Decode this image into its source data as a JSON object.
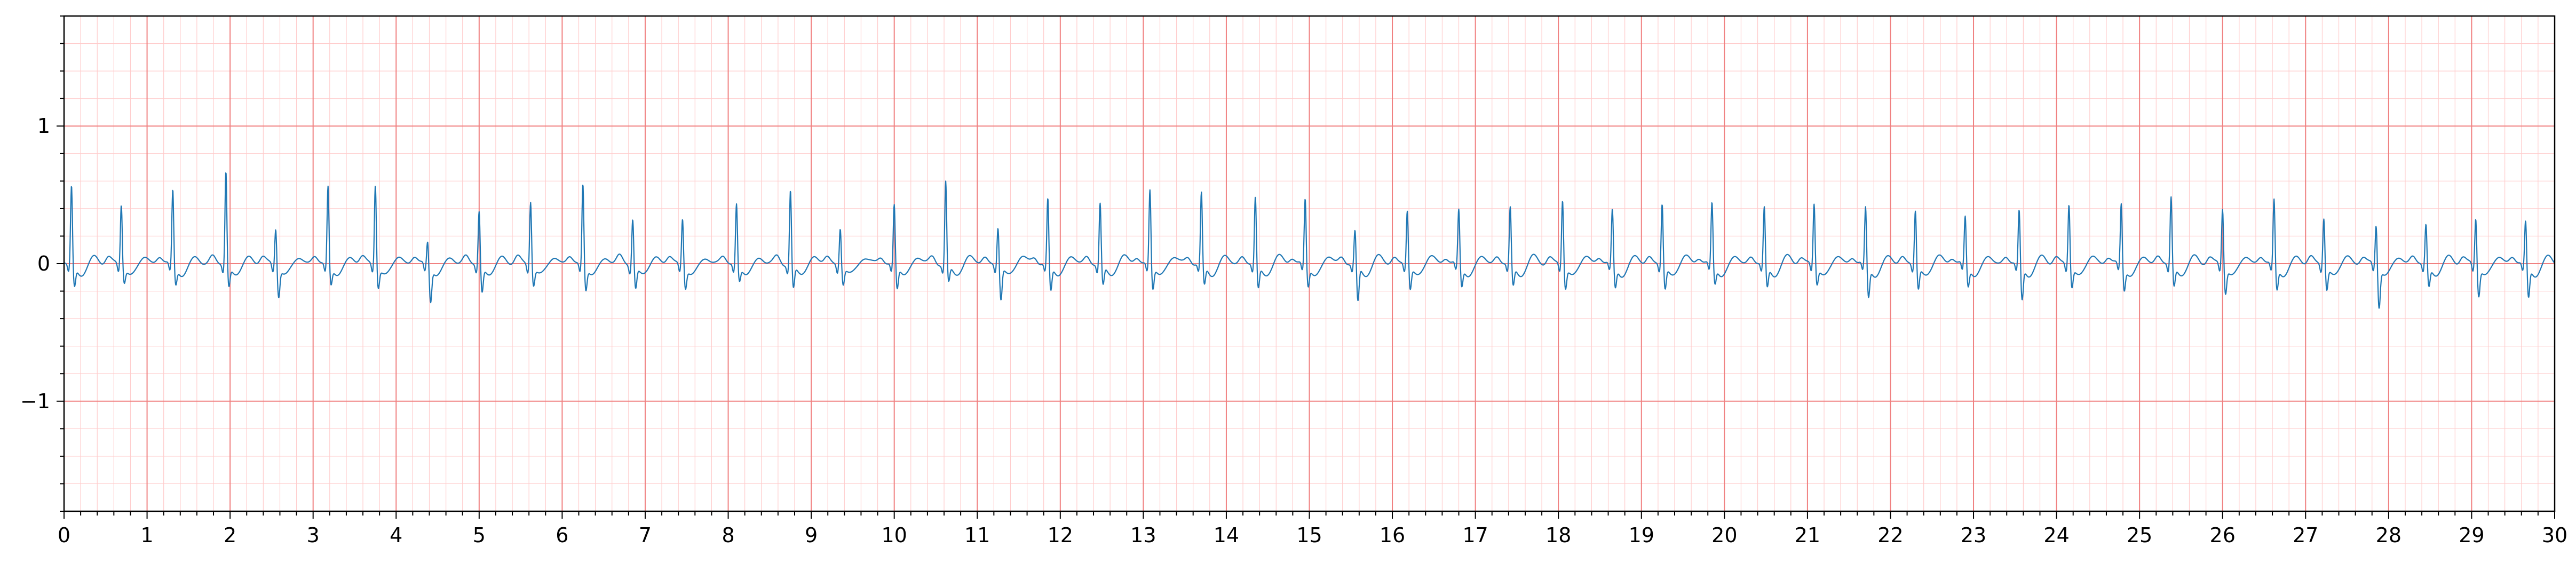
{
  "chart_data": {
    "type": "line",
    "title": "",
    "xlabel": "",
    "ylabel": "",
    "xlim": [
      0,
      30
    ],
    "ylim": [
      -1.8,
      1.8
    ],
    "x_ticks": [
      "0",
      "1",
      "2",
      "3",
      "4",
      "5",
      "6",
      "7",
      "8",
      "9",
      "10",
      "11",
      "12",
      "13",
      "14",
      "15",
      "16",
      "17",
      "18",
      "19",
      "20",
      "21",
      "22",
      "23",
      "24",
      "25",
      "26",
      "27",
      "28",
      "29",
      "30"
    ],
    "y_ticks": [
      {
        "value": 1,
        "label": "1"
      },
      {
        "value": 0,
        "label": "0"
      },
      {
        "value": -1,
        "label": "−1"
      }
    ],
    "grid": {
      "major": true,
      "minor": true,
      "major_step_x": 1,
      "minor_step_x": 0.2,
      "major_step_y": 1,
      "minor_step_y": 0.2
    },
    "colors": {
      "major_grid": "#f08080",
      "minor_grid": "#ffcccc",
      "trace": "#1f77b4",
      "axes": "#000000"
    },
    "series": [
      {
        "beats": [
          [
            0.09,
            0.58,
            -0.14
          ],
          [
            0.69,
            0.45,
            -0.1
          ],
          [
            1.31,
            0.55,
            -0.12
          ],
          [
            1.95,
            0.69,
            -0.14
          ],
          [
            2.55,
            0.28,
            -0.2
          ],
          [
            3.18,
            0.58,
            -0.12
          ],
          [
            3.75,
            0.6,
            -0.14
          ],
          [
            4.38,
            0.18,
            -0.24
          ],
          [
            5.0,
            0.4,
            -0.18
          ],
          [
            5.62,
            0.48,
            -0.12
          ],
          [
            6.25,
            0.6,
            -0.16
          ],
          [
            6.85,
            0.35,
            -0.15
          ],
          [
            7.45,
            0.35,
            -0.14
          ],
          [
            8.1,
            0.45,
            -0.1
          ],
          [
            8.75,
            0.55,
            -0.16
          ],
          [
            9.35,
            0.28,
            -0.12
          ],
          [
            10.0,
            0.44,
            -0.16
          ],
          [
            10.62,
            0.61,
            -0.12
          ],
          [
            11.25,
            0.28,
            -0.24
          ],
          [
            11.85,
            0.48,
            -0.18
          ],
          [
            12.48,
            0.45,
            -0.14
          ],
          [
            13.08,
            0.55,
            -0.16
          ],
          [
            13.7,
            0.52,
            -0.14
          ],
          [
            14.35,
            0.5,
            -0.16
          ],
          [
            14.95,
            0.48,
            -0.14
          ],
          [
            15.55,
            0.25,
            -0.26
          ],
          [
            16.18,
            0.4,
            -0.16
          ],
          [
            16.8,
            0.4,
            -0.14
          ],
          [
            17.42,
            0.42,
            -0.14
          ],
          [
            18.05,
            0.48,
            -0.15
          ],
          [
            18.65,
            0.4,
            -0.15
          ],
          [
            19.25,
            0.45,
            -0.16
          ],
          [
            19.85,
            0.45,
            -0.12
          ],
          [
            20.48,
            0.42,
            -0.15
          ],
          [
            21.08,
            0.45,
            -0.12
          ],
          [
            21.7,
            0.42,
            -0.22
          ],
          [
            22.3,
            0.4,
            -0.16
          ],
          [
            22.9,
            0.35,
            -0.14
          ],
          [
            23.55,
            0.4,
            -0.24
          ],
          [
            24.15,
            0.45,
            -0.14
          ],
          [
            24.78,
            0.45,
            -0.16
          ],
          [
            25.38,
            0.5,
            -0.14
          ],
          [
            26.0,
            0.42,
            -0.18
          ],
          [
            26.62,
            0.48,
            -0.16
          ],
          [
            27.22,
            0.35,
            -0.16
          ],
          [
            27.85,
            0.3,
            -0.28
          ],
          [
            28.45,
            0.3,
            -0.14
          ],
          [
            29.05,
            0.35,
            -0.2
          ],
          [
            29.65,
            0.32,
            -0.22
          ]
        ]
      }
    ]
  }
}
